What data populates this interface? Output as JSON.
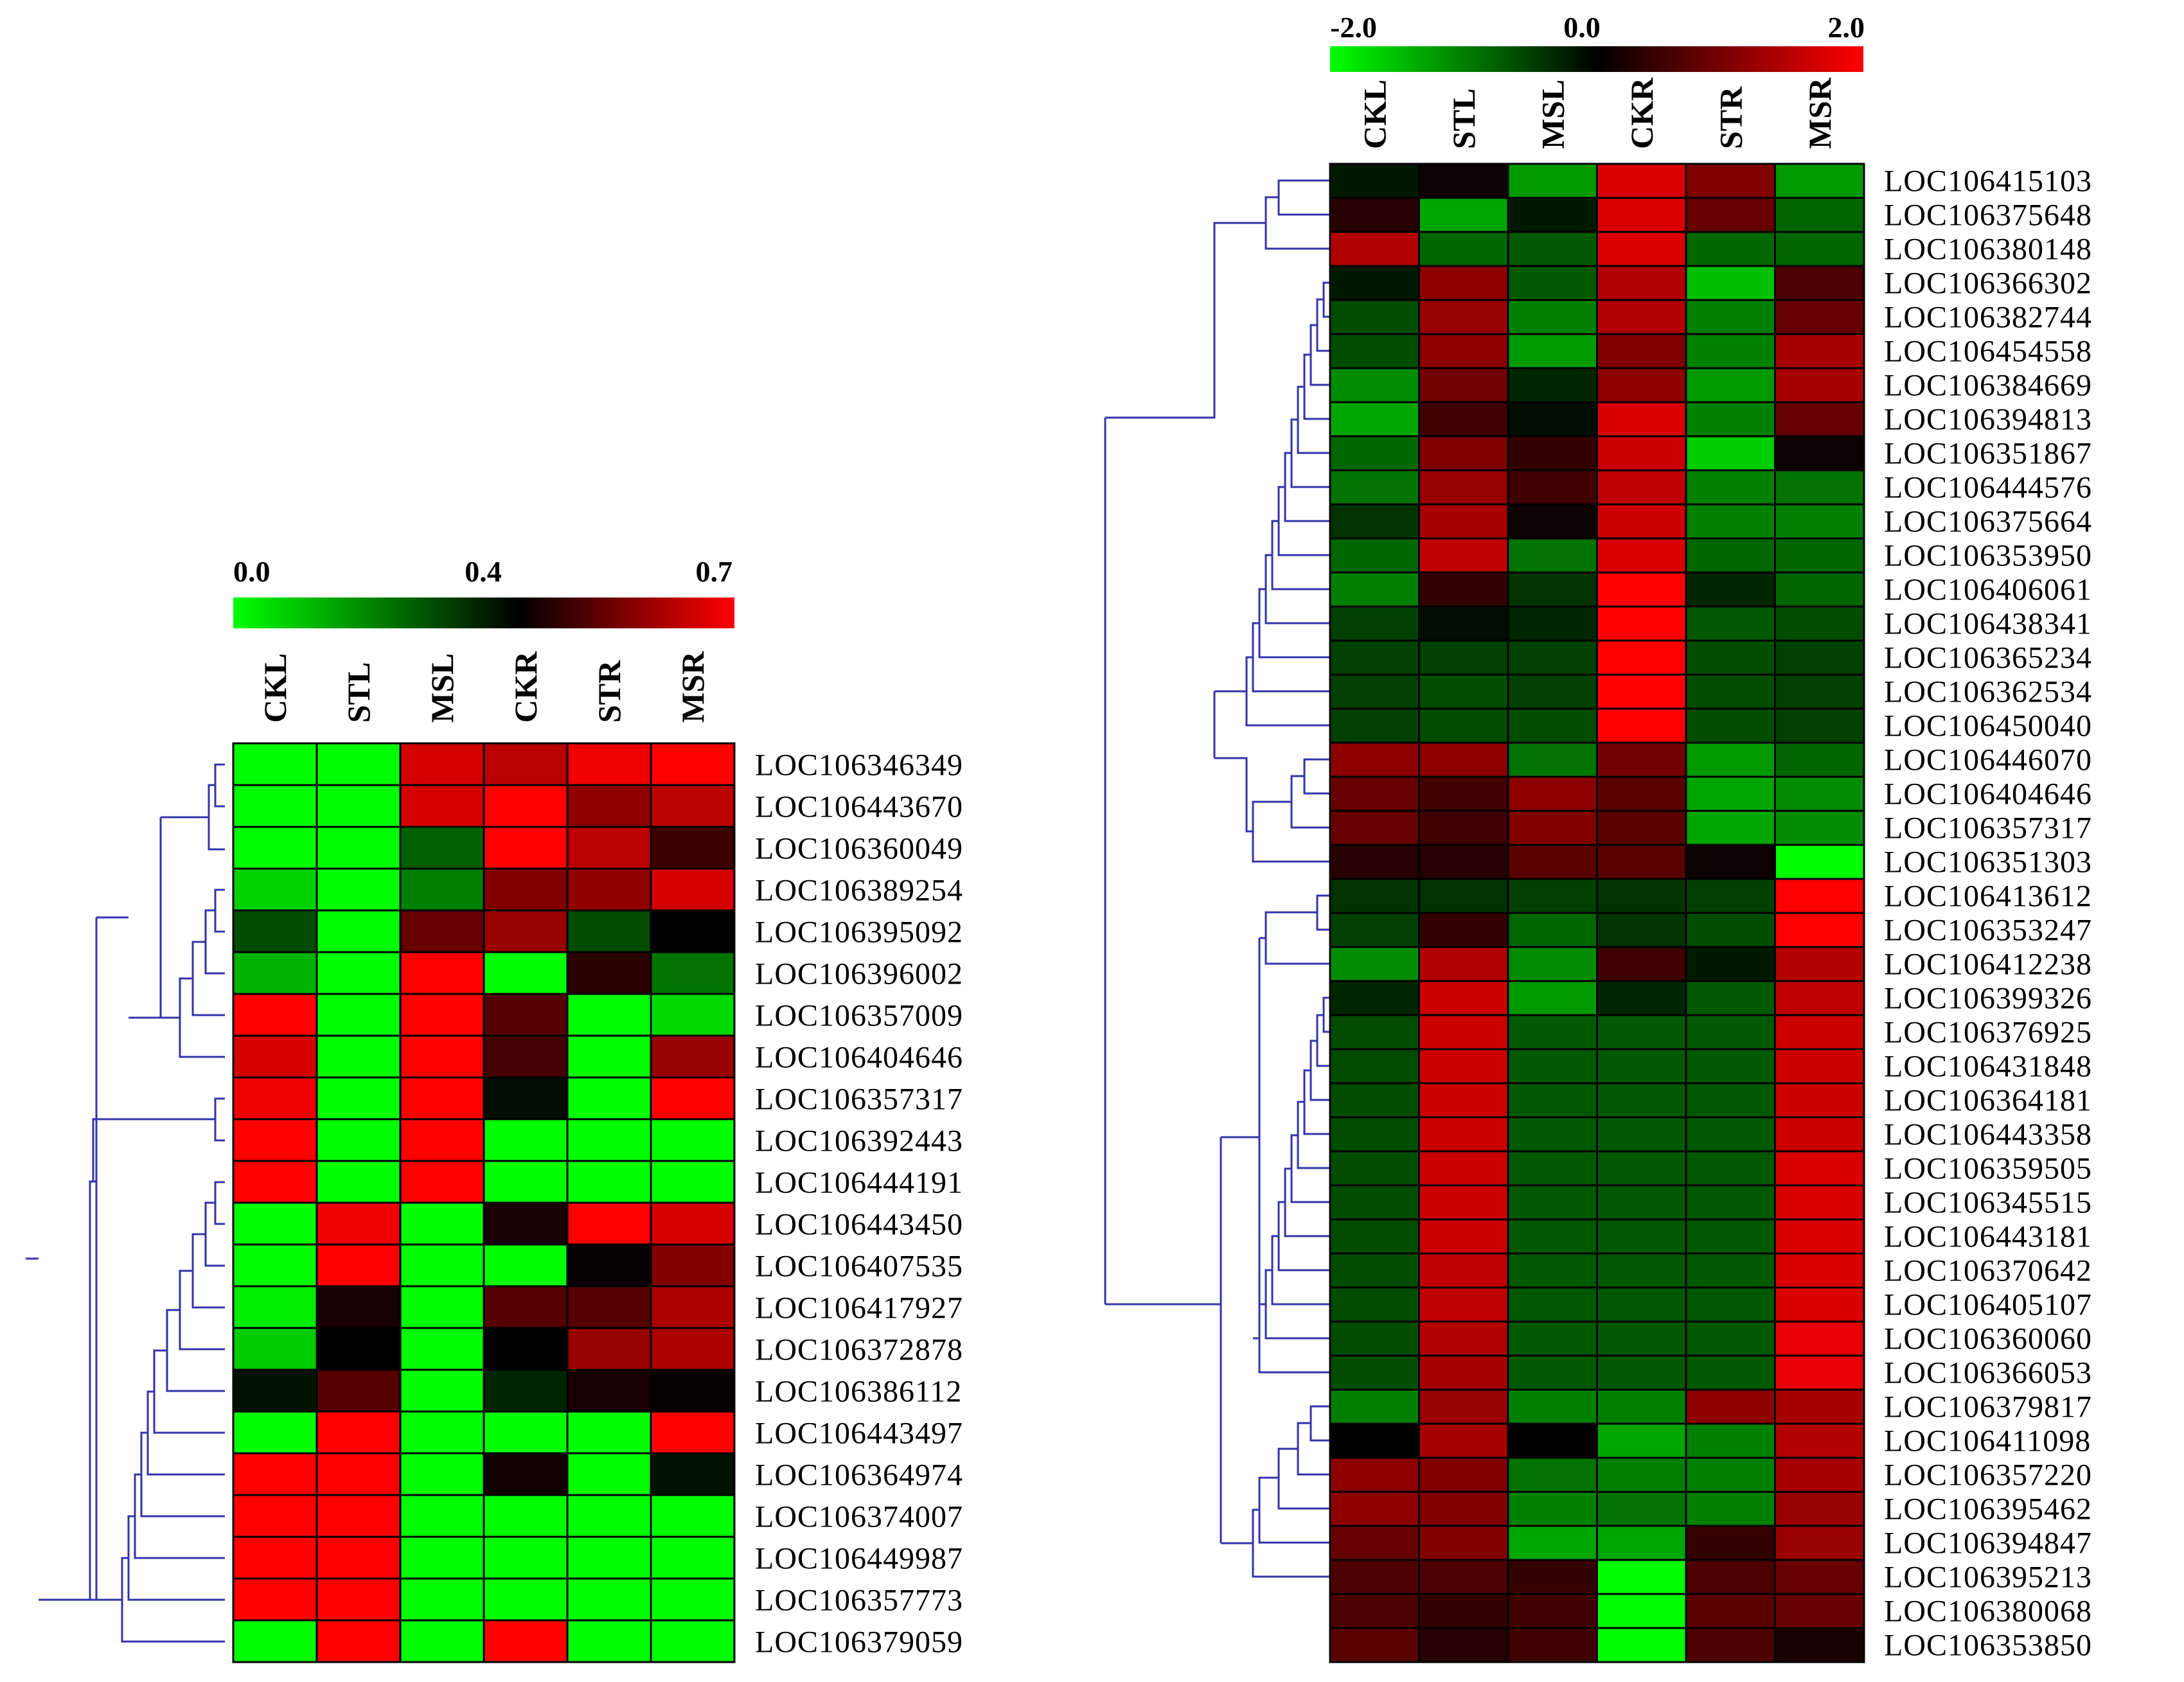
{
  "chart_data": [
    {
      "type": "heatmap",
      "name": "left",
      "columns": [
        "CKL",
        "STL",
        "MSL",
        "CKR",
        "STR",
        "MSR"
      ],
      "rows": [
        "LOC106346349",
        "LOC106443670",
        "LOC106360049",
        "LOC106389254",
        "LOC106395092",
        "LOC106396002",
        "LOC106357009",
        "LOC106404646",
        "LOC106357317",
        "LOC106392443",
        "LOC106444191",
        "LOC106443450",
        "LOC106407535",
        "LOC106417927",
        "LOC106372878",
        "LOC106386112",
        "LOC106443497",
        "LOC106364974",
        "LOC106374007",
        "LOC106449987",
        "LOC106357773",
        "LOC106379059"
      ],
      "values": [
        [
          0.0,
          0.0,
          0.65,
          0.62,
          0.68,
          0.7
        ],
        [
          0.0,
          0.0,
          0.65,
          0.7,
          0.57,
          0.62
        ],
        [
          0.0,
          0.0,
          0.25,
          0.7,
          0.62,
          0.47
        ],
        [
          0.07,
          0.0,
          0.2,
          0.55,
          0.57,
          0.65
        ],
        [
          0.28,
          0.0,
          0.52,
          0.58,
          0.28,
          0.4
        ],
        [
          0.12,
          0.0,
          0.7,
          0.0,
          0.45,
          0.22
        ],
        [
          0.7,
          0.0,
          0.7,
          0.5,
          0.0,
          0.06
        ],
        [
          0.65,
          0.0,
          0.7,
          0.48,
          0.0,
          0.58
        ],
        [
          0.68,
          0.0,
          0.7,
          0.38,
          0.0,
          0.7
        ],
        [
          0.7,
          0.0,
          0.7,
          0.0,
          0.0,
          0.0
        ],
        [
          0.7,
          0.0,
          0.7,
          0.0,
          0.0,
          0.0
        ],
        [
          0.0,
          0.68,
          0.0,
          0.43,
          0.7,
          0.65
        ],
        [
          0.0,
          0.7,
          0.0,
          0.0,
          0.41,
          0.55
        ],
        [
          0.03,
          0.43,
          0.0,
          0.5,
          0.5,
          0.6
        ],
        [
          0.08,
          0.4,
          0.0,
          0.4,
          0.58,
          0.6
        ],
        [
          0.37,
          0.5,
          0.0,
          0.34,
          0.43,
          0.41
        ],
        [
          0.0,
          0.7,
          0.0,
          0.0,
          0.0,
          0.7
        ],
        [
          0.7,
          0.7,
          0.0,
          0.42,
          0.0,
          0.37
        ],
        [
          0.7,
          0.7,
          0.0,
          0.0,
          0.0,
          0.0
        ],
        [
          0.7,
          0.7,
          0.0,
          0.0,
          0.0,
          0.0
        ],
        [
          0.7,
          0.7,
          0.0,
          0.0,
          0.0,
          0.0
        ],
        [
          0.0,
          0.7,
          0.0,
          0.7,
          0.0,
          0.0
        ]
      ],
      "color_scale": {
        "min": 0.0,
        "mid": 0.4,
        "max": 0.7,
        "min_color": "#00ff00",
        "mid_color": "#000000",
        "max_color": "#ff0000"
      },
      "scale_labels": [
        "0.0",
        "0.4",
        "0.7"
      ],
      "dendrogram_color": "#3333aa"
    },
    {
      "type": "heatmap",
      "name": "right",
      "columns": [
        "CKL",
        "STL",
        "MSL",
        "CKR",
        "STR",
        "MSR"
      ],
      "rows": [
        "LOC106415103",
        "LOC106375648",
        "LOC106380148",
        "LOC106366302",
        "LOC106382744",
        "LOC106454558",
        "LOC106384669",
        "LOC106394813",
        "LOC106351867",
        "LOC106444576",
        "LOC106375664",
        "LOC106353950",
        "LOC106406061",
        "LOC106438341",
        "LOC106365234",
        "LOC106362534",
        "LOC106450040",
        "LOC106446070",
        "LOC106404646",
        "LOC106357317",
        "LOC106351303",
        "LOC106413612",
        "LOC106353247",
        "LOC106412238",
        "LOC106399326",
        "LOC106376925",
        "LOC106431848",
        "LOC106364181",
        "LOC106443358",
        "LOC106359505",
        "LOC106345515",
        "LOC106443181",
        "LOC106370642",
        "LOC106405107",
        "LOC106360060",
        "LOC106366053",
        "LOC106379817",
        "LOC106411098",
        "LOC106357220",
        "LOC106395462",
        "LOC106394847",
        "LOC106395213",
        "LOC106380068",
        "LOC106353850"
      ],
      "values": [
        [
          -0.2,
          0.1,
          -1.2,
          1.7,
          1.0,
          -1.2
        ],
        [
          0.3,
          -1.3,
          -0.2,
          1.7,
          0.8,
          -0.8
        ],
        [
          1.4,
          -0.8,
          -0.7,
          1.7,
          -0.8,
          -0.8
        ],
        [
          -0.2,
          1.1,
          -0.7,
          1.4,
          -1.5,
          0.6
        ],
        [
          -0.6,
          1.2,
          -1.0,
          1.4,
          -1.0,
          0.8
        ],
        [
          -0.6,
          1.1,
          -1.2,
          1.0,
          -1.0,
          1.3
        ],
        [
          -1.1,
          0.9,
          -0.3,
          1.1,
          -1.2,
          1.3
        ],
        [
          -1.3,
          0.5,
          -0.1,
          1.7,
          -1.0,
          0.8
        ],
        [
          -0.8,
          1.0,
          0.4,
          1.6,
          -1.6,
          0.1
        ],
        [
          -0.9,
          1.2,
          0.5,
          1.5,
          -1.0,
          -0.9
        ],
        [
          -0.4,
          1.3,
          0.1,
          1.6,
          -1.0,
          -1.0
        ],
        [
          -0.8,
          1.5,
          -0.9,
          1.7,
          -0.8,
          -0.8
        ],
        [
          -1.0,
          0.4,
          -0.4,
          2.0,
          -0.3,
          -0.8
        ],
        [
          -0.5,
          -0.1,
          -0.3,
          2.0,
          -0.7,
          -0.6
        ],
        [
          -0.5,
          -0.5,
          -0.5,
          2.0,
          -0.6,
          -0.5
        ],
        [
          -0.5,
          -0.6,
          -0.5,
          2.0,
          -0.6,
          -0.5
        ],
        [
          -0.5,
          -0.6,
          -0.6,
          2.0,
          -0.6,
          -0.5
        ],
        [
          1.1,
          1.1,
          -0.9,
          0.9,
          -1.2,
          -0.8
        ],
        [
          0.8,
          0.5,
          1.1,
          0.7,
          -1.3,
          -1.1
        ],
        [
          0.8,
          0.5,
          1.0,
          0.7,
          -1.3,
          -1.1
        ],
        [
          0.3,
          0.3,
          0.7,
          0.7,
          0.1,
          -2.0
        ],
        [
          -0.4,
          -0.4,
          -0.5,
          -0.4,
          -0.5,
          2.0
        ],
        [
          -0.5,
          0.4,
          -0.8,
          -0.4,
          -0.6,
          2.0
        ],
        [
          -1.1,
          1.4,
          -1.1,
          0.5,
          -0.2,
          1.4
        ],
        [
          -0.3,
          1.6,
          -1.2,
          -0.3,
          -0.7,
          1.5
        ],
        [
          -0.6,
          1.6,
          -0.7,
          -0.7,
          -0.7,
          1.6
        ],
        [
          -0.6,
          1.6,
          -0.7,
          -0.7,
          -0.7,
          1.6
        ],
        [
          -0.6,
          1.6,
          -0.7,
          -0.7,
          -0.7,
          1.6
        ],
        [
          -0.6,
          1.6,
          -0.7,
          -0.7,
          -0.7,
          1.6
        ],
        [
          -0.6,
          1.6,
          -0.7,
          -0.7,
          -0.7,
          1.7
        ],
        [
          -0.6,
          1.6,
          -0.7,
          -0.7,
          -0.7,
          1.7
        ],
        [
          -0.6,
          1.6,
          -0.7,
          -0.7,
          -0.7,
          1.7
        ],
        [
          -0.6,
          1.5,
          -0.7,
          -0.7,
          -0.7,
          1.7
        ],
        [
          -0.6,
          1.5,
          -0.7,
          -0.7,
          -0.7,
          1.7
        ],
        [
          -0.6,
          1.4,
          -0.7,
          -0.7,
          -0.7,
          1.8
        ],
        [
          -0.6,
          1.3,
          -0.7,
          -0.7,
          -0.7,
          1.8
        ],
        [
          -1.0,
          1.2,
          -1.0,
          -1.0,
          1.1,
          1.3
        ],
        [
          0.0,
          1.3,
          0.0,
          -1.3,
          -1.0,
          1.4
        ],
        [
          1.1,
          1.0,
          -0.9,
          -1.0,
          -1.0,
          1.3
        ],
        [
          1.1,
          1.0,
          -1.0,
          -0.9,
          -1.0,
          1.2
        ],
        [
          0.8,
          1.0,
          -1.3,
          -1.3,
          0.4,
          1.2
        ],
        [
          0.6,
          0.6,
          0.4,
          -2.0,
          0.6,
          0.8
        ],
        [
          0.6,
          0.4,
          0.5,
          -2.0,
          0.7,
          0.8
        ],
        [
          0.7,
          0.3,
          0.5,
          -2.0,
          0.6,
          0.2
        ]
      ],
      "color_scale": {
        "min": -2.0,
        "mid": 0.0,
        "max": 2.0,
        "min_color": "#00ff00",
        "mid_color": "#000000",
        "max_color": "#ff0000"
      },
      "scale_labels": [
        "-2.0",
        "0.0",
        "2.0"
      ],
      "dendrogram_color": "#3333aa"
    }
  ]
}
